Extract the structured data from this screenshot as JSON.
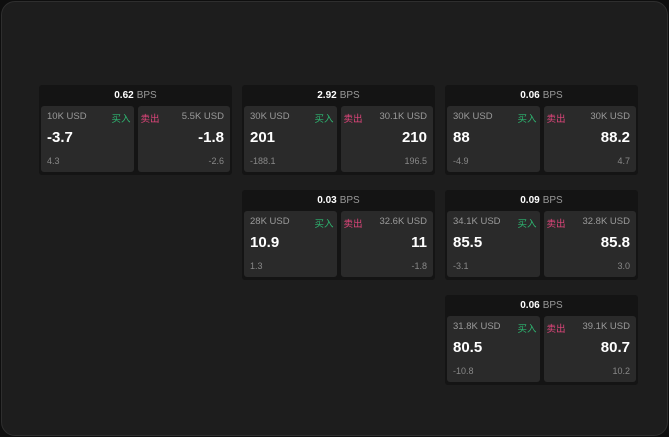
{
  "unit": "BPS",
  "buy_label": "买入",
  "sell_label": "卖出",
  "colors": {
    "buy": "#2eb872",
    "sell": "#e0457b",
    "background": "#1d1d1d"
  },
  "cards": [
    {
      "spread": "0.62",
      "buy": {
        "size": "10K USD",
        "price": "-3.7",
        "change": "4.3"
      },
      "sell": {
        "size": "5.5K USD",
        "price": "-1.8",
        "change": "-2.6"
      }
    },
    {
      "spread": "2.92",
      "buy": {
        "size": "30K USD",
        "price": "201",
        "change": "-188.1"
      },
      "sell": {
        "size": "30.1K USD",
        "price": "210",
        "change": "196.5"
      }
    },
    {
      "spread": "0.06",
      "buy": {
        "size": "30K USD",
        "price": "88",
        "change": "-4.9"
      },
      "sell": {
        "size": "30K USD",
        "price": "88.2",
        "change": "4.7"
      }
    },
    {
      "spread": "0.03",
      "buy": {
        "size": "28K USD",
        "price": "10.9",
        "change": "1.3"
      },
      "sell": {
        "size": "32.6K USD",
        "price": "11",
        "change": "-1.8"
      }
    },
    {
      "spread": "0.09",
      "buy": {
        "size": "34.1K USD",
        "price": "85.5",
        "change": "-3.1"
      },
      "sell": {
        "size": "32.8K USD",
        "price": "85.8",
        "change": "3.0"
      }
    },
    {
      "spread": "0.06",
      "buy": {
        "size": "31.8K USD",
        "price": "80.5",
        "change": "-10.8"
      },
      "sell": {
        "size": "39.1K USD",
        "price": "80.7",
        "change": "10.2"
      }
    }
  ]
}
